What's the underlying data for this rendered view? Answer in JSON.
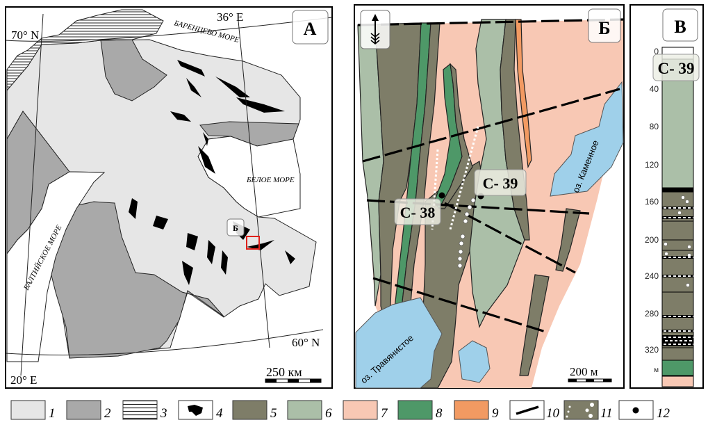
{
  "panels": {
    "a": {
      "label": "А"
    },
    "b": {
      "label": "Б"
    },
    "v": {
      "label": "В"
    }
  },
  "map_a": {
    "lat_north": "70° N",
    "lat_south": "60° N",
    "lon_west": "20° E",
    "lon_east": "36° E",
    "sea_barents": "БАРЕНЦЕВО МОРЕ",
    "sea_white": "БЕЛОЕ МОРЕ",
    "sea_baltic": "БАЛТИЙСКОЕ МОРЕ",
    "inset_label": "Б",
    "scale_label": "250 км"
  },
  "map_b": {
    "wells": [
      {
        "label": "С- 38"
      },
      {
        "label": "С- 39"
      }
    ],
    "lake_east": "оз. Каменное",
    "lake_west": "оз. Травянистое",
    "scale_label": "200 м",
    "north_arrow": "north-arrow-icon"
  },
  "column_v": {
    "well_label": "С- 39",
    "depth_labels": [
      "0",
      "40",
      "80",
      "120",
      "160",
      "200",
      "240",
      "280",
      "320",
      "м"
    ]
  },
  "legend": {
    "items": [
      {
        "num": "1",
        "color": "#e6e6e6"
      },
      {
        "num": "2",
        "color": "#a9a9a9"
      },
      {
        "num": "3",
        "color": "hatched"
      },
      {
        "num": "4",
        "color": "#000000"
      },
      {
        "num": "5",
        "color": "#7e7d68"
      },
      {
        "num": "6",
        "color": "#abbfa8"
      },
      {
        "num": "7",
        "color": "#f8c8b4"
      },
      {
        "num": "8",
        "color": "#4e9868"
      },
      {
        "num": "9",
        "color": "#f29a62"
      },
      {
        "num": "10",
        "color": "fault-line"
      },
      {
        "num": "11",
        "color": "dots"
      },
      {
        "num": "12",
        "color": "well-point"
      }
    ]
  },
  "colors": {
    "light_gray": "#e6e6e6",
    "dark_gray": "#a9a9a9",
    "olive": "#7e7d68",
    "pale_green": "#abbfa8",
    "pink": "#f8c8b4",
    "green": "#4e9868",
    "orange": "#f29a62",
    "lake": "#9fd0ea",
    "inset_red": "#e0201a"
  }
}
